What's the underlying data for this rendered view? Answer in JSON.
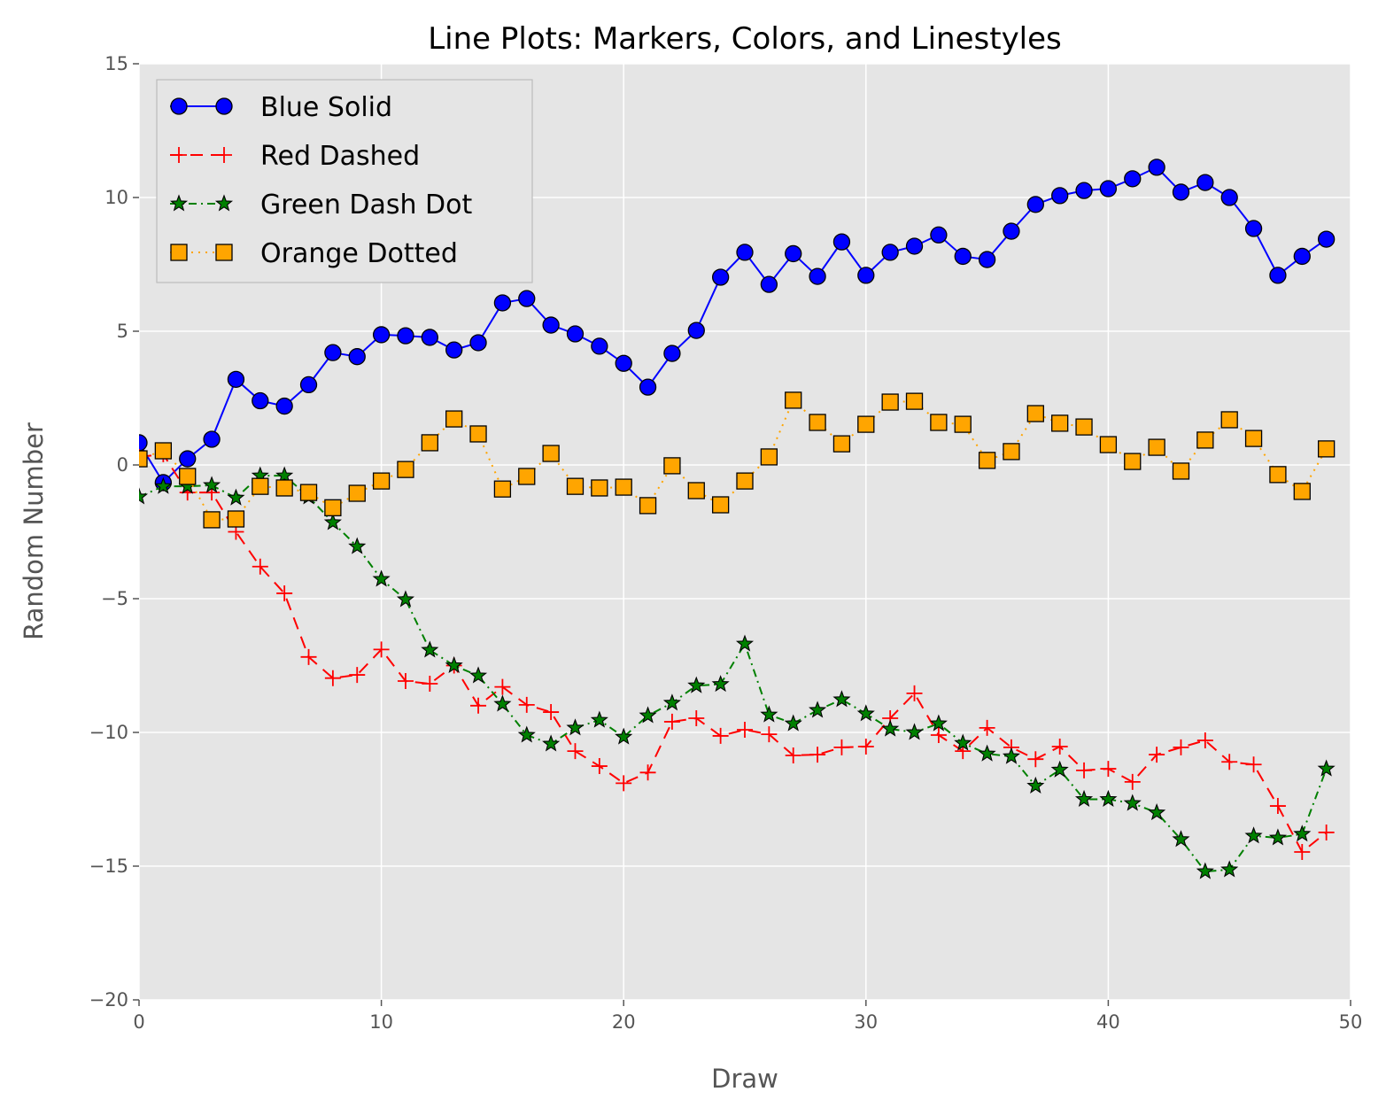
{
  "chart_data": {
    "type": "line",
    "title": "Line Plots: Markers, Colors, and Linestyles",
    "xlabel": "Draw",
    "ylabel": "Random Number",
    "xlim": [
      0,
      50
    ],
    "ylim": [
      -20,
      15
    ],
    "xticks": [
      0,
      10,
      20,
      30,
      40,
      50
    ],
    "yticks": [
      -20,
      -15,
      -10,
      -5,
      0,
      5,
      10,
      15
    ],
    "ytick_labels": [
      "−20",
      "−15",
      "−10",
      "−5",
      "0",
      "5",
      "10",
      "15"
    ],
    "grid": true,
    "background": "#e5e5e5",
    "legend_position": "top-left",
    "x": [
      0,
      1,
      2,
      3,
      4,
      5,
      6,
      7,
      8,
      9,
      10,
      11,
      12,
      13,
      14,
      15,
      16,
      17,
      18,
      19,
      20,
      21,
      22,
      23,
      24,
      25,
      26,
      27,
      28,
      29,
      30,
      31,
      32,
      33,
      34,
      35,
      36,
      37,
      38,
      39,
      40,
      41,
      42,
      43,
      44,
      45,
      46,
      47,
      48,
      49
    ],
    "series": [
      {
        "name": "Blue Solid",
        "color": "#0000ff",
        "linestyle": "solid",
        "marker": "circle",
        "values": [
          0.83,
          -0.66,
          0.23,
          0.96,
          3.2,
          2.4,
          2.2,
          3.0,
          4.2,
          4.05,
          4.87,
          4.83,
          4.77,
          4.3,
          4.57,
          6.06,
          6.22,
          5.23,
          4.9,
          4.44,
          3.8,
          2.91,
          4.17,
          5.03,
          7.02,
          7.95,
          6.75,
          7.9,
          7.05,
          8.34,
          7.09,
          7.95,
          8.18,
          8.6,
          7.8,
          7.68,
          8.74,
          9.74,
          10.07,
          10.26,
          10.33,
          10.7,
          11.13,
          10.2,
          10.56,
          10.0,
          8.84,
          7.09,
          7.8,
          8.44
        ]
      },
      {
        "name": "Red Dashed",
        "color": "#ff0000",
        "linestyle": "dashed",
        "marker": "plus",
        "values": [
          0.3,
          0.4,
          -1.03,
          -1.03,
          -2.5,
          -3.8,
          -4.8,
          -7.18,
          -7.97,
          -7.85,
          -6.9,
          -8.08,
          -8.18,
          -7.5,
          -9.0,
          -8.3,
          -8.97,
          -9.24,
          -10.7,
          -11.26,
          -11.9,
          -11.5,
          -9.6,
          -9.47,
          -10.13,
          -9.9,
          -10.07,
          -10.86,
          -10.83,
          -10.56,
          -10.53,
          -9.47,
          -8.54,
          -10.1,
          -10.7,
          -9.83,
          -10.56,
          -11.0,
          -10.53,
          -11.42,
          -11.36,
          -11.85,
          -10.83,
          -10.56,
          -10.3,
          -11.1,
          -11.2,
          -12.75,
          -14.47,
          -13.74
        ]
      },
      {
        "name": "Green Dash Dot",
        "color": "#008000",
        "linestyle": "dashdot",
        "marker": "star",
        "values": [
          -1.19,
          -0.8,
          -0.8,
          -0.76,
          -1.23,
          -0.4,
          -0.4,
          -1.19,
          -2.15,
          -3.05,
          -4.27,
          -5.03,
          -6.92,
          -7.5,
          -7.88,
          -8.94,
          -10.1,
          -10.43,
          -9.83,
          -9.54,
          -10.17,
          -9.37,
          -8.9,
          -8.25,
          -8.2,
          -6.69,
          -9.34,
          -9.67,
          -9.17,
          -8.77,
          -9.3,
          -9.87,
          -10.0,
          -9.67,
          -10.4,
          -10.8,
          -10.9,
          -12.0,
          -11.4,
          -12.5,
          -12.5,
          -12.65,
          -13.0,
          -14.0,
          -15.2,
          -15.13,
          -13.87,
          -13.94,
          -13.8,
          -11.36
        ]
      },
      {
        "name": "Orange Dotted",
        "color": "#ffa500",
        "linestyle": "dotted",
        "marker": "square",
        "values": [
          0.23,
          0.53,
          -0.43,
          -2.05,
          -2.02,
          -0.8,
          -0.86,
          -1.03,
          -1.6,
          -1.06,
          -0.6,
          -0.17,
          0.83,
          1.72,
          1.16,
          -0.9,
          -0.43,
          0.43,
          -0.8,
          -0.86,
          -0.83,
          -1.52,
          -0.03,
          -0.96,
          -1.49,
          -0.6,
          0.3,
          2.42,
          1.59,
          0.79,
          1.52,
          2.35,
          2.38,
          1.59,
          1.52,
          0.17,
          0.5,
          1.92,
          1.56,
          1.42,
          0.76,
          0.13,
          0.66,
          -0.23,
          0.93,
          1.69,
          0.99,
          -0.36,
          -0.99,
          0.6
        ]
      }
    ]
  }
}
